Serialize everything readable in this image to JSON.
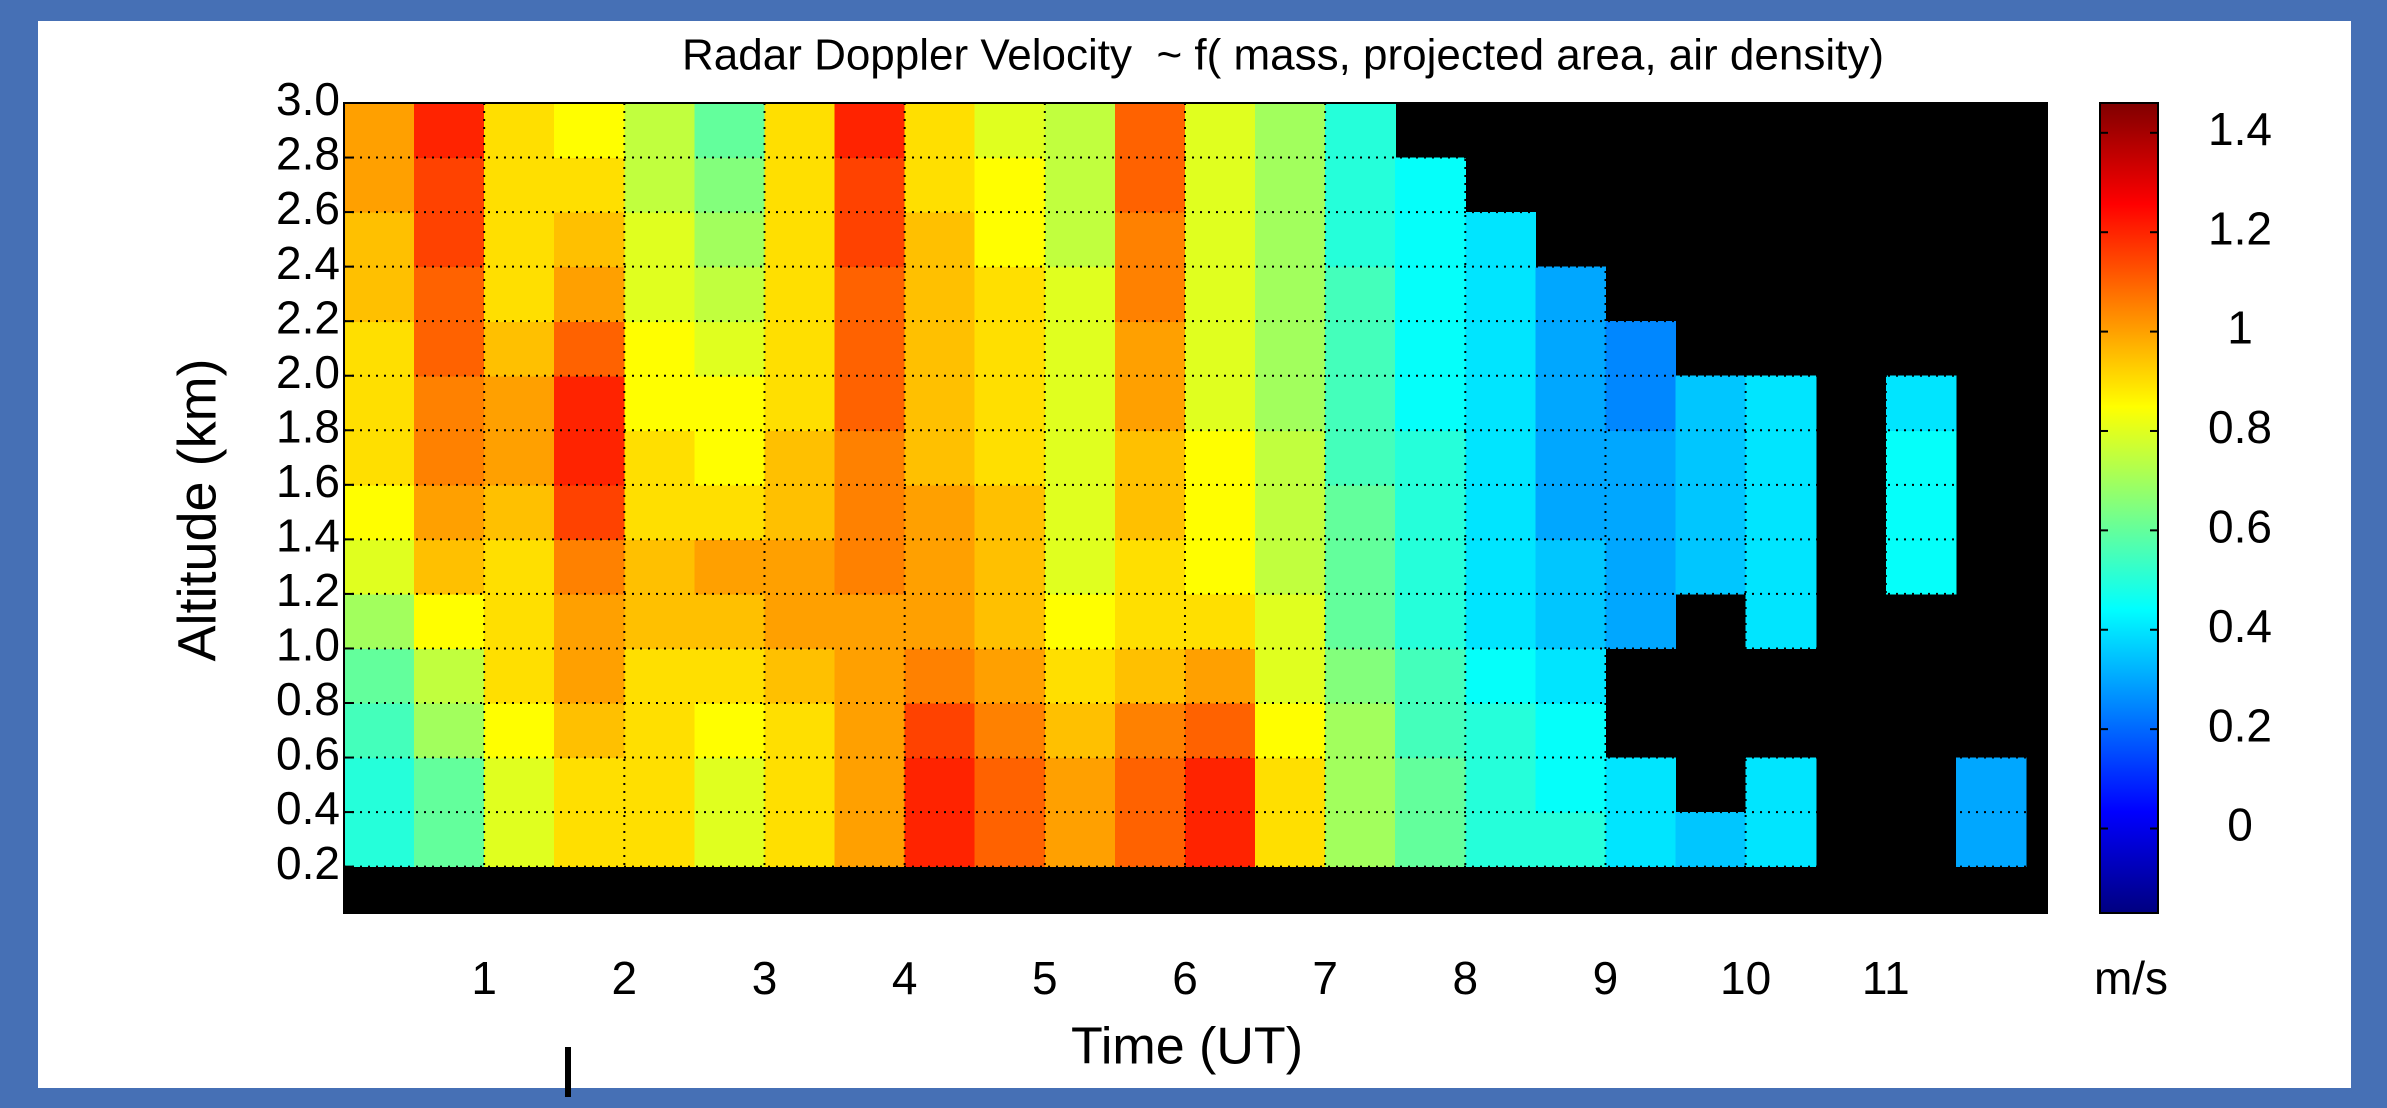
{
  "chart_data": {
    "type": "heatmap",
    "title": "Radar Doppler Velocity  ~ f( mass, projected area, air density)",
    "xlabel": "Time (UT)",
    "ylabel": "Altitude (km)",
    "colorbar_label": "m/s",
    "colormap": "jet",
    "background": "#000000",
    "grid": true,
    "x": [
      0.25,
      0.75,
      1.25,
      1.75,
      2.25,
      2.75,
      3.25,
      3.75,
      4.25,
      4.75,
      5.25,
      5.75,
      6.25,
      6.75,
      7.25,
      7.75,
      8.25,
      8.75,
      9.25,
      9.75,
      10.25,
      10.75,
      11.25,
      11.75
    ],
    "y": [
      0.3,
      0.5,
      0.7,
      0.9,
      1.1,
      1.3,
      1.5,
      1.7,
      1.9,
      2.1,
      2.3,
      2.5,
      2.7,
      2.9
    ],
    "z": [
      [
        0.5,
        0.6,
        0.8,
        0.9,
        0.9,
        0.8,
        0.9,
        1.0,
        1.2,
        1.1,
        1.0,
        1.1,
        1.2,
        0.9,
        0.7,
        0.6,
        0.5,
        0.5,
        0.4,
        0.35,
        0.4,
        null,
        null,
        0.3
      ],
      [
        0.5,
        0.6,
        0.8,
        0.9,
        0.9,
        0.8,
        0.9,
        1.0,
        1.2,
        1.1,
        1.0,
        1.1,
        1.2,
        0.9,
        0.7,
        0.6,
        0.5,
        0.45,
        0.4,
        null,
        0.4,
        null,
        null,
        0.3
      ],
      [
        0.55,
        0.7,
        0.85,
        0.95,
        0.9,
        0.85,
        0.9,
        1.0,
        1.15,
        1.05,
        0.95,
        1.05,
        1.1,
        0.85,
        0.7,
        0.55,
        0.5,
        0.45,
        null,
        null,
        null,
        null,
        null,
        null
      ],
      [
        0.6,
        0.75,
        0.9,
        1.0,
        0.9,
        0.9,
        0.95,
        1.0,
        1.05,
        1.0,
        0.9,
        0.95,
        1.0,
        0.8,
        0.65,
        0.55,
        0.45,
        0.4,
        null,
        null,
        null,
        null,
        null,
        null
      ],
      [
        0.7,
        0.85,
        0.9,
        1.0,
        0.95,
        0.95,
        1.0,
        1.0,
        1.0,
        0.95,
        0.85,
        0.9,
        0.9,
        0.8,
        0.6,
        0.5,
        0.4,
        0.35,
        0.3,
        null,
        0.4,
        null,
        null,
        null
      ],
      [
        0.8,
        0.95,
        0.9,
        1.05,
        0.95,
        1.0,
        1.0,
        1.05,
        1.0,
        0.95,
        0.8,
        0.9,
        0.85,
        0.75,
        0.6,
        0.5,
        0.4,
        0.35,
        0.3,
        0.35,
        0.4,
        null,
        0.45,
        null
      ],
      [
        0.85,
        1.0,
        0.95,
        1.15,
        0.9,
        0.9,
        0.95,
        1.05,
        1.0,
        0.95,
        0.8,
        0.95,
        0.85,
        0.75,
        0.6,
        0.5,
        0.4,
        0.3,
        0.3,
        0.35,
        0.4,
        null,
        0.45,
        null
      ],
      [
        0.9,
        1.05,
        1.0,
        1.2,
        0.9,
        0.85,
        0.95,
        1.05,
        0.95,
        0.9,
        0.8,
        0.95,
        0.85,
        0.75,
        0.55,
        0.5,
        0.4,
        0.3,
        0.3,
        0.35,
        0.4,
        null,
        0.45,
        null
      ],
      [
        0.9,
        1.05,
        1.0,
        1.2,
        0.85,
        0.85,
        0.9,
        1.1,
        0.95,
        0.9,
        0.8,
        1.0,
        0.8,
        0.7,
        0.55,
        0.45,
        0.4,
        0.3,
        0.25,
        0.35,
        0.4,
        null,
        0.4,
        null
      ],
      [
        0.9,
        1.1,
        0.95,
        1.1,
        0.85,
        0.8,
        0.9,
        1.1,
        0.95,
        0.9,
        0.8,
        1.0,
        0.8,
        0.7,
        0.55,
        0.45,
        0.4,
        0.3,
        0.25,
        null,
        null,
        null,
        null,
        null
      ],
      [
        0.95,
        1.1,
        0.9,
        1.0,
        0.8,
        0.75,
        0.9,
        1.1,
        0.95,
        0.9,
        0.8,
        1.05,
        0.8,
        0.7,
        0.55,
        0.45,
        0.4,
        0.3,
        null,
        null,
        null,
        null,
        null,
        null
      ],
      [
        0.95,
        1.15,
        0.9,
        0.95,
        0.8,
        0.7,
        0.9,
        1.15,
        0.95,
        0.85,
        0.75,
        1.05,
        0.8,
        0.7,
        0.5,
        0.45,
        0.4,
        null,
        null,
        null,
        null,
        null,
        null,
        null
      ],
      [
        1.0,
        1.15,
        0.9,
        0.9,
        0.75,
        0.65,
        0.9,
        1.15,
        0.9,
        0.85,
        0.75,
        1.1,
        0.8,
        0.7,
        0.5,
        0.45,
        null,
        null,
        null,
        null,
        null,
        null,
        null,
        null
      ],
      [
        1.0,
        1.2,
        0.9,
        0.85,
        0.75,
        0.6,
        0.9,
        1.2,
        0.9,
        0.8,
        0.75,
        1.1,
        0.8,
        0.7,
        0.5,
        null,
        null,
        null,
        null,
        null,
        null,
        null,
        null,
        null
      ]
    ],
    "xlim": [
      0,
      12.15
    ],
    "ylim": [
      0.03,
      3.0
    ],
    "xticks": [
      1,
      2,
      3,
      4,
      5,
      6,
      7,
      8,
      9,
      10,
      11
    ],
    "yticks": [
      0.2,
      0.4,
      0.6,
      0.8,
      {
        "value": 1,
        "label": "1.0"
      },
      1.2,
      1.4,
      1.6,
      1.8,
      {
        "value": 2,
        "label": "2.0"
      },
      2.2,
      2.4,
      2.6,
      2.8,
      {
        "value": 3,
        "label": "3.0"
      }
    ],
    "clim": [
      -0.17,
      1.46
    ],
    "cticks": [
      0,
      0.2,
      0.4,
      0.6,
      0.8,
      1,
      1.2,
      1.4
    ]
  }
}
